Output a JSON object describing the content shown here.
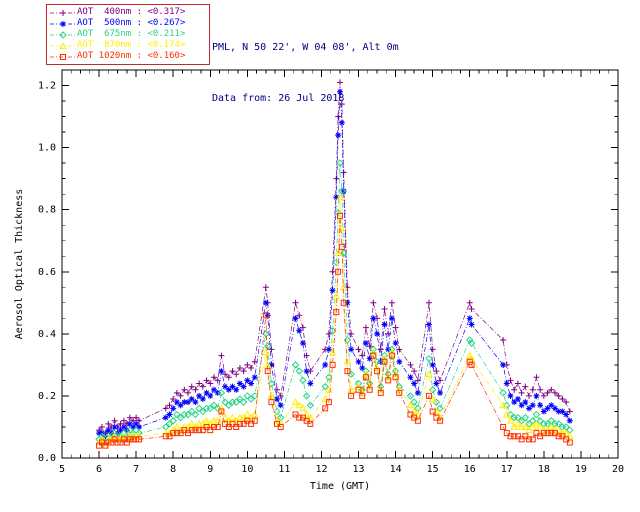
{
  "header": {
    "station_line": "PML, N 50 22', W 04 08', Alt 0m",
    "date_line": "Data from: 26 Jul 2018",
    "text_color": "#000080"
  },
  "chart_data": {
    "type": "line",
    "title": "",
    "xlabel": "Time (GMT)",
    "ylabel": "Aerosol Optical Thickness",
    "xlim": [
      5,
      20
    ],
    "ylim": [
      0,
      1.25
    ],
    "x_ticks": [
      5,
      6,
      7,
      8,
      9,
      10,
      11,
      12,
      13,
      14,
      15,
      16,
      17,
      18,
      19,
      20
    ],
    "y_ticks": [
      0.0,
      0.2,
      0.4,
      0.6,
      0.8,
      1.0,
      1.2
    ],
    "grid": false,
    "legend_position": "top-left-outside",
    "legend_border_color": "#cc2233",
    "x": [
      6.0,
      6.08,
      6.17,
      6.25,
      6.33,
      6.42,
      6.5,
      6.58,
      6.67,
      6.75,
      6.83,
      6.92,
      7.0,
      7.08,
      7.8,
      7.9,
      8.0,
      8.1,
      8.2,
      8.3,
      8.4,
      8.5,
      8.6,
      8.7,
      8.8,
      8.9,
      9.0,
      9.1,
      9.2,
      9.3,
      9.4,
      9.5,
      9.6,
      9.7,
      9.8,
      9.9,
      10.0,
      10.1,
      10.2,
      10.5,
      10.55,
      10.65,
      10.8,
      10.9,
      11.3,
      11.4,
      11.5,
      11.6,
      11.7,
      12.1,
      12.2,
      12.3,
      12.4,
      12.45,
      12.5,
      12.55,
      12.6,
      12.7,
      12.8,
      13.0,
      13.1,
      13.2,
      13.3,
      13.4,
      13.5,
      13.6,
      13.7,
      13.8,
      13.9,
      14.0,
      14.1,
      14.4,
      14.5,
      14.6,
      14.9,
      15.0,
      15.1,
      15.2,
      16.0,
      16.05,
      16.9,
      17.0,
      17.1,
      17.2,
      17.3,
      17.4,
      17.5,
      17.6,
      17.7,
      17.8,
      17.9,
      18.0,
      18.1,
      18.2,
      18.3,
      18.4,
      18.5,
      18.6,
      18.7
    ],
    "series": [
      {
        "id": "400nm",
        "name": "AOT 400nm",
        "mean": "<0.317>",
        "label": "AOT  400nm : <0.317>",
        "color": "#800080",
        "marker": "plus",
        "values": [
          0.09,
          0.1,
          0.08,
          0.11,
          0.1,
          0.12,
          0.1,
          0.11,
          0.12,
          0.11,
          0.13,
          0.12,
          0.13,
          0.12,
          0.16,
          0.17,
          0.19,
          0.21,
          0.2,
          0.22,
          0.21,
          0.23,
          0.22,
          0.24,
          0.23,
          0.25,
          0.24,
          0.26,
          0.25,
          0.33,
          0.27,
          0.26,
          0.28,
          0.27,
          0.29,
          0.28,
          0.3,
          0.29,
          0.31,
          0.55,
          0.5,
          0.35,
          0.22,
          0.2,
          0.5,
          0.46,
          0.42,
          0.33,
          0.28,
          0.35,
          0.4,
          0.6,
          0.9,
          1.1,
          1.21,
          1.14,
          0.92,
          0.55,
          0.4,
          0.35,
          0.33,
          0.42,
          0.36,
          0.5,
          0.45,
          0.35,
          0.48,
          0.4,
          0.5,
          0.42,
          0.35,
          0.3,
          0.28,
          0.25,
          0.5,
          0.35,
          0.28,
          0.25,
          0.5,
          0.48,
          0.38,
          0.3,
          0.25,
          0.22,
          0.24,
          0.21,
          0.23,
          0.2,
          0.22,
          0.26,
          0.22,
          0.2,
          0.21,
          0.22,
          0.21,
          0.2,
          0.19,
          0.18,
          0.15
        ]
      },
      {
        "id": "500nm",
        "name": "AOT 500nm",
        "mean": "<0.267>",
        "label": "AOT  500nm : <0.267>",
        "color": "#0000ff",
        "marker": "asterisk",
        "values": [
          0.08,
          0.08,
          0.07,
          0.09,
          0.08,
          0.1,
          0.08,
          0.09,
          0.1,
          0.09,
          0.11,
          0.1,
          0.11,
          0.1,
          0.13,
          0.14,
          0.16,
          0.18,
          0.17,
          0.18,
          0.18,
          0.19,
          0.18,
          0.2,
          0.19,
          0.21,
          0.2,
          0.22,
          0.21,
          0.28,
          0.23,
          0.22,
          0.23,
          0.22,
          0.24,
          0.23,
          0.25,
          0.24,
          0.26,
          0.5,
          0.46,
          0.3,
          0.19,
          0.17,
          0.45,
          0.41,
          0.37,
          0.28,
          0.24,
          0.3,
          0.35,
          0.54,
          0.84,
          1.04,
          1.18,
          1.08,
          0.86,
          0.5,
          0.35,
          0.31,
          0.29,
          0.37,
          0.32,
          0.45,
          0.4,
          0.31,
          0.43,
          0.35,
          0.45,
          0.37,
          0.31,
          0.26,
          0.24,
          0.21,
          0.43,
          0.3,
          0.24,
          0.21,
          0.45,
          0.43,
          0.3,
          0.24,
          0.2,
          0.18,
          0.19,
          0.17,
          0.18,
          0.16,
          0.17,
          0.2,
          0.17,
          0.15,
          0.16,
          0.17,
          0.16,
          0.15,
          0.15,
          0.14,
          0.12
        ]
      },
      {
        "id": "675nm",
        "name": "AOT 675nm",
        "mean": "<0.211>",
        "label": "AOT  675nm : <0.211>",
        "color": "#2ad287",
        "marker": "diamond",
        "values": [
          0.06,
          0.07,
          0.05,
          0.07,
          0.07,
          0.08,
          0.07,
          0.07,
          0.08,
          0.07,
          0.09,
          0.08,
          0.09,
          0.08,
          0.1,
          0.11,
          0.12,
          0.14,
          0.13,
          0.14,
          0.14,
          0.15,
          0.14,
          0.16,
          0.15,
          0.16,
          0.16,
          0.17,
          0.16,
          0.21,
          0.18,
          0.17,
          0.18,
          0.18,
          0.19,
          0.18,
          0.2,
          0.19,
          0.2,
          0.4,
          0.36,
          0.24,
          0.15,
          0.13,
          0.3,
          0.28,
          0.25,
          0.2,
          0.17,
          0.23,
          0.26,
          0.41,
          0.63,
          0.79,
          0.95,
          0.86,
          0.66,
          0.38,
          0.27,
          0.24,
          0.22,
          0.28,
          0.24,
          0.35,
          0.31,
          0.23,
          0.33,
          0.27,
          0.35,
          0.28,
          0.23,
          0.2,
          0.18,
          0.16,
          0.32,
          0.22,
          0.18,
          0.16,
          0.38,
          0.37,
          0.21,
          0.17,
          0.14,
          0.13,
          0.13,
          0.12,
          0.13,
          0.11,
          0.12,
          0.14,
          0.12,
          0.11,
          0.11,
          0.12,
          0.11,
          0.11,
          0.1,
          0.1,
          0.09
        ]
      },
      {
        "id": "870nm",
        "name": "AOT 870nm",
        "mean": "<0.174>",
        "label": "AOT  870nm : <0.174>",
        "color": "#ffee00",
        "marker": "triangle",
        "values": [
          0.05,
          0.06,
          0.04,
          0.06,
          0.06,
          0.07,
          0.06,
          0.06,
          0.07,
          0.06,
          0.07,
          0.07,
          0.07,
          0.07,
          0.08,
          0.08,
          0.09,
          0.1,
          0.09,
          0.1,
          0.1,
          0.11,
          0.1,
          0.11,
          0.11,
          0.12,
          0.11,
          0.12,
          0.12,
          0.16,
          0.13,
          0.12,
          0.13,
          0.12,
          0.13,
          0.13,
          0.14,
          0.13,
          0.14,
          0.34,
          0.3,
          0.2,
          0.12,
          0.11,
          0.18,
          0.17,
          0.16,
          0.14,
          0.13,
          0.19,
          0.22,
          0.34,
          0.52,
          0.66,
          0.84,
          0.74,
          0.55,
          0.31,
          0.22,
          0.23,
          0.21,
          0.27,
          0.23,
          0.34,
          0.29,
          0.22,
          0.32,
          0.26,
          0.34,
          0.27,
          0.22,
          0.17,
          0.15,
          0.14,
          0.27,
          0.19,
          0.15,
          0.13,
          0.33,
          0.32,
          0.17,
          0.14,
          0.12,
          0.1,
          0.11,
          0.1,
          0.1,
          0.09,
          0.1,
          0.11,
          0.1,
          0.09,
          0.09,
          0.1,
          0.09,
          0.09,
          0.08,
          0.08,
          0.07
        ]
      },
      {
        "id": "1020nm",
        "name": "AOT 1020nm",
        "mean": "<0.160>",
        "label": "AOT 1020nm : <0.160>",
        "color": "#ff3000",
        "marker": "square",
        "values": [
          0.04,
          0.05,
          0.04,
          0.05,
          0.05,
          0.06,
          0.05,
          0.05,
          0.06,
          0.05,
          0.06,
          0.06,
          0.06,
          0.06,
          0.07,
          0.07,
          0.08,
          0.08,
          0.08,
          0.09,
          0.08,
          0.09,
          0.09,
          0.09,
          0.09,
          0.1,
          0.09,
          0.1,
          0.1,
          0.15,
          0.11,
          0.1,
          0.11,
          0.1,
          0.11,
          0.11,
          0.12,
          0.11,
          0.12,
          0.46,
          0.28,
          0.18,
          0.11,
          0.1,
          0.14,
          0.13,
          0.13,
          0.12,
          0.11,
          0.16,
          0.18,
          0.3,
          0.47,
          0.6,
          0.78,
          0.68,
          0.5,
          0.28,
          0.2,
          0.22,
          0.2,
          0.26,
          0.22,
          0.33,
          0.28,
          0.21,
          0.31,
          0.25,
          0.33,
          0.26,
          0.21,
          0.14,
          0.13,
          0.12,
          0.2,
          0.15,
          0.13,
          0.12,
          0.31,
          0.3,
          0.1,
          0.08,
          0.07,
          0.07,
          0.07,
          0.06,
          0.07,
          0.06,
          0.06,
          0.08,
          0.07,
          0.08,
          0.08,
          0.08,
          0.08,
          0.07,
          0.07,
          0.06,
          0.05
        ]
      }
    ]
  }
}
